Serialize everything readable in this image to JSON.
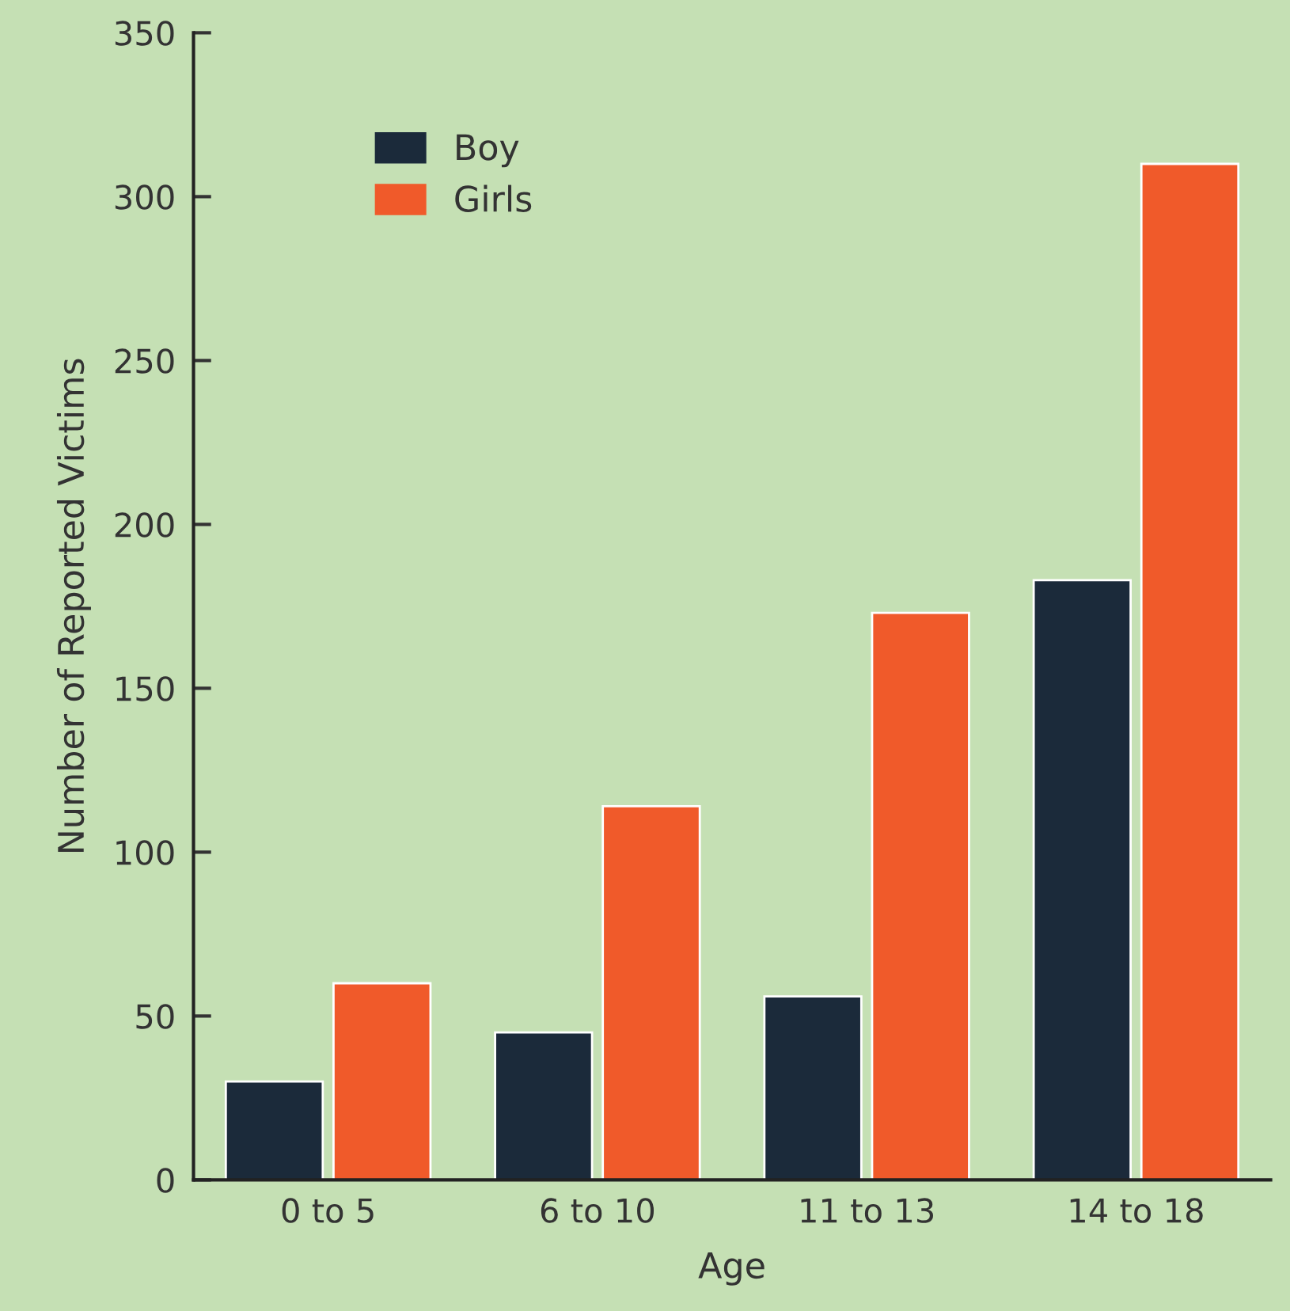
{
  "chart_data": {
    "type": "bar",
    "xlabel": "Age",
    "ylabel": "Number of Reported Victims",
    "categories": [
      "0 to 5",
      "6 to 10",
      "11 to 13",
      "14 to 18"
    ],
    "series": [
      {
        "name": "Boy",
        "color": "#1b2a3a",
        "values": [
          30,
          45,
          56,
          183
        ]
      },
      {
        "name": "Girls",
        "color": "#f05a2a",
        "values": [
          60,
          114,
          173,
          310
        ]
      }
    ],
    "ylim": [
      0,
      350
    ],
    "yticks": [
      0,
      50,
      100,
      150,
      200,
      250,
      300,
      350
    ],
    "grid": false,
    "legend": "top left"
  }
}
